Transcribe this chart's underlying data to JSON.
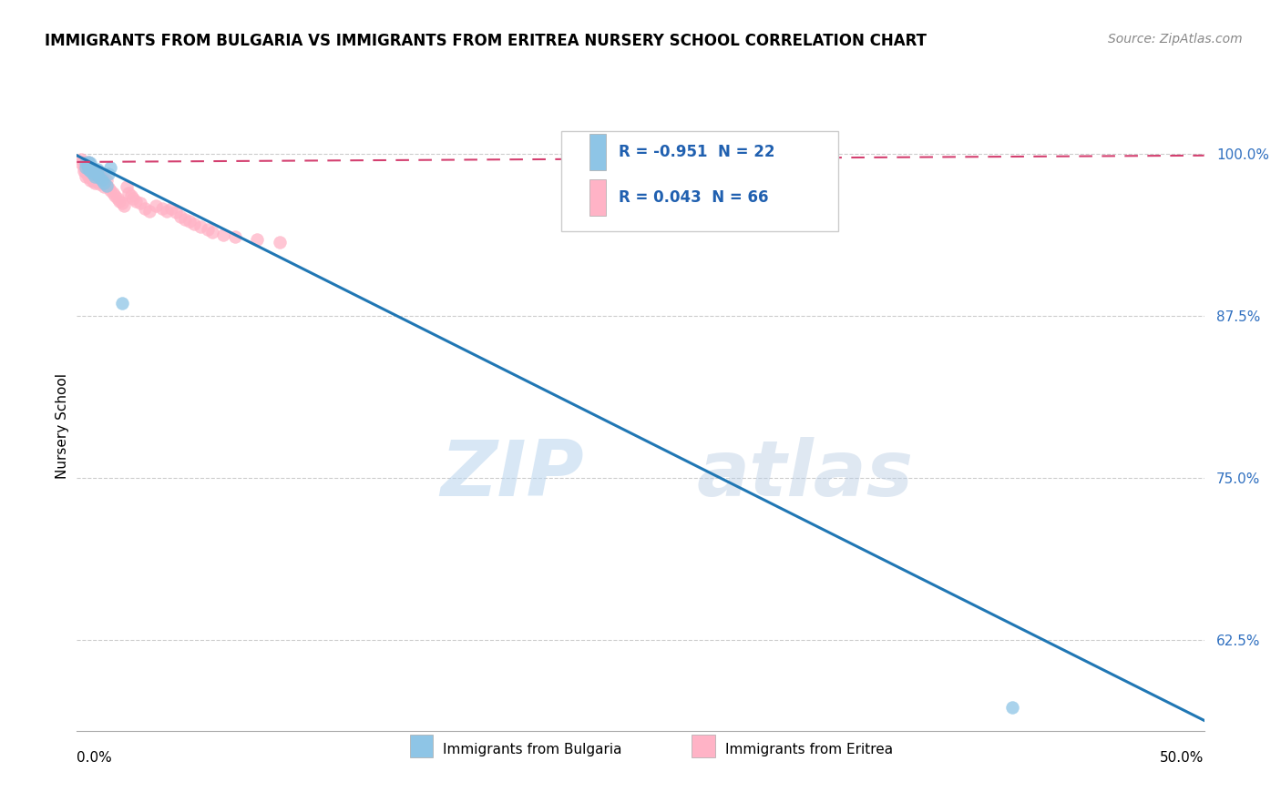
{
  "title": "IMMIGRANTS FROM BULGARIA VS IMMIGRANTS FROM ERITREA NURSERY SCHOOL CORRELATION CHART",
  "source": "Source: ZipAtlas.com",
  "ylabel": "Nursery School",
  "ytick_labels": [
    "100.0%",
    "87.5%",
    "75.0%",
    "62.5%"
  ],
  "ytick_values": [
    1.0,
    0.875,
    0.75,
    0.625
  ],
  "xlim": [
    0.0,
    0.5
  ],
  "ylim": [
    0.555,
    1.025
  ],
  "legend_line1": "R = -0.951  N = 22",
  "legend_line2": "R = 0.043  N = 66",
  "color_bulgaria": "#8ec5e6",
  "color_eritrea": "#ffb3c6",
  "color_trendline_bulgaria": "#2077b4",
  "color_trendline_eritrea": "#d44070",
  "watermark_zip": "ZIP",
  "watermark_atlas": "atlas",
  "bulgaria_scatter_x": [
    0.004,
    0.004,
    0.005,
    0.005,
    0.005,
    0.006,
    0.006,
    0.006,
    0.007,
    0.007,
    0.008,
    0.008,
    0.009,
    0.009,
    0.01,
    0.011,
    0.012,
    0.013,
    0.014,
    0.015,
    0.02,
    0.415
  ],
  "bulgaria_scatter_y": [
    0.99,
    0.993,
    0.988,
    0.991,
    0.994,
    0.987,
    0.99,
    0.993,
    0.985,
    0.989,
    0.983,
    0.987,
    0.984,
    0.988,
    0.982,
    0.98,
    0.978,
    0.976,
    0.985,
    0.99,
    0.885,
    0.573
  ],
  "eritrea_scatter_x": [
    0.002,
    0.002,
    0.003,
    0.003,
    0.003,
    0.004,
    0.004,
    0.004,
    0.004,
    0.005,
    0.005,
    0.005,
    0.005,
    0.006,
    0.006,
    0.006,
    0.006,
    0.007,
    0.007,
    0.007,
    0.008,
    0.008,
    0.008,
    0.009,
    0.009,
    0.01,
    0.01,
    0.01,
    0.011,
    0.011,
    0.012,
    0.012,
    0.013,
    0.013,
    0.014,
    0.015,
    0.016,
    0.017,
    0.018,
    0.019,
    0.02,
    0.021,
    0.022,
    0.023,
    0.024,
    0.025,
    0.026,
    0.028,
    0.03,
    0.032,
    0.035,
    0.038,
    0.04,
    0.042,
    0.044,
    0.046,
    0.048,
    0.05,
    0.052,
    0.055,
    0.058,
    0.06,
    0.065,
    0.07,
    0.08,
    0.09
  ],
  "eritrea_scatter_y": [
    0.996,
    0.993,
    0.994,
    0.99,
    0.987,
    0.993,
    0.99,
    0.986,
    0.983,
    0.994,
    0.991,
    0.987,
    0.983,
    0.991,
    0.988,
    0.984,
    0.98,
    0.987,
    0.983,
    0.979,
    0.986,
    0.982,
    0.978,
    0.984,
    0.98,
    0.985,
    0.981,
    0.977,
    0.982,
    0.978,
    0.979,
    0.975,
    0.98,
    0.976,
    0.974,
    0.972,
    0.97,
    0.968,
    0.966,
    0.964,
    0.962,
    0.96,
    0.975,
    0.97,
    0.968,
    0.966,
    0.964,
    0.962,
    0.958,
    0.956,
    0.96,
    0.958,
    0.956,
    0.958,
    0.955,
    0.952,
    0.95,
    0.948,
    0.946,
    0.944,
    0.942,
    0.94,
    0.938,
    0.936,
    0.934,
    0.932
  ],
  "bulgaria_trendline_x": [
    0.0,
    0.5
  ],
  "bulgaria_trendline_y": [
    0.999,
    0.563
  ],
  "eritrea_trendline_x": [
    0.0,
    0.5
  ],
  "eritrea_trendline_y": [
    0.994,
    0.999
  ]
}
